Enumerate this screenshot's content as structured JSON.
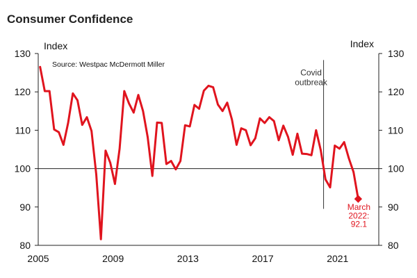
{
  "chart_data": {
    "type": "line",
    "title": "Consumer Confidence",
    "ylabel_left": "Index",
    "ylabel_right": "Index",
    "source": "Source: Westpac McDermott Miller",
    "ylim": [
      80,
      130
    ],
    "xlim": [
      2005,
      2023.2
    ],
    "y_ticks": [
      "130",
      "120",
      "110",
      "100",
      "90",
      "80"
    ],
    "x_ticks": [
      "2005",
      "2009",
      "2013",
      "2017",
      "2021"
    ],
    "reference_line": 100,
    "event": {
      "label_line1": "Covid",
      "label_line2": "outbreak",
      "x": 2020.25
    },
    "series": [
      {
        "name": "Consumer Confidence",
        "color": "#e0141e",
        "x": [
          2005.1,
          2005.35,
          2005.6,
          2005.85,
          2006.1,
          2006.35,
          2006.6,
          2006.85,
          2007.1,
          2007.35,
          2007.6,
          2007.85,
          2008.1,
          2008.35,
          2008.6,
          2008.85,
          2009.1,
          2009.35,
          2009.6,
          2009.85,
          2010.1,
          2010.35,
          2010.6,
          2010.85,
          2011.1,
          2011.35,
          2011.6,
          2011.85,
          2012.1,
          2012.35,
          2012.6,
          2012.85,
          2013.1,
          2013.35,
          2013.6,
          2013.85,
          2014.1,
          2014.35,
          2014.6,
          2014.85,
          2015.1,
          2015.35,
          2015.6,
          2015.85,
          2016.1,
          2016.35,
          2016.6,
          2016.85,
          2017.1,
          2017.35,
          2017.6,
          2017.85,
          2018.1,
          2018.35,
          2018.6,
          2018.85,
          2019.1,
          2019.35,
          2019.6,
          2019.85,
          2020.1,
          2020.35,
          2020.6,
          2020.85,
          2021.1,
          2021.35,
          2021.6,
          2021.85,
          2022.1
        ],
        "values": [
          126.5,
          120.2,
          120.2,
          110.2,
          109.5,
          106.2,
          112.0,
          119.6,
          117.8,
          111.4,
          113.4,
          109.8,
          98.5,
          81.6,
          104.7,
          101.5,
          96.0,
          105.2,
          120.2,
          117.0,
          114.6,
          119.2,
          115.0,
          108.2,
          98.1,
          112.0,
          111.9,
          101.2,
          102.0,
          99.8,
          102.0,
          111.3,
          111.0,
          116.6,
          115.6,
          120.3,
          121.6,
          121.2,
          116.7,
          115.0,
          117.2,
          112.8,
          106.2,
          110.5,
          110.0,
          106.1,
          107.9,
          113.1,
          111.9,
          113.4,
          112.4,
          107.4,
          111.2,
          108.3,
          103.6,
          109.1,
          103.9,
          103.8,
          103.5,
          110.0,
          104.8,
          97.2,
          95.1,
          106.0,
          105.2,
          106.9,
          102.7,
          99.1,
          92.1
        ]
      }
    ],
    "last_point": {
      "label_line1": "March",
      "label_line2": "2022:",
      "label_line3": "92.1",
      "x": 2022.1,
      "value": 92.1
    }
  }
}
